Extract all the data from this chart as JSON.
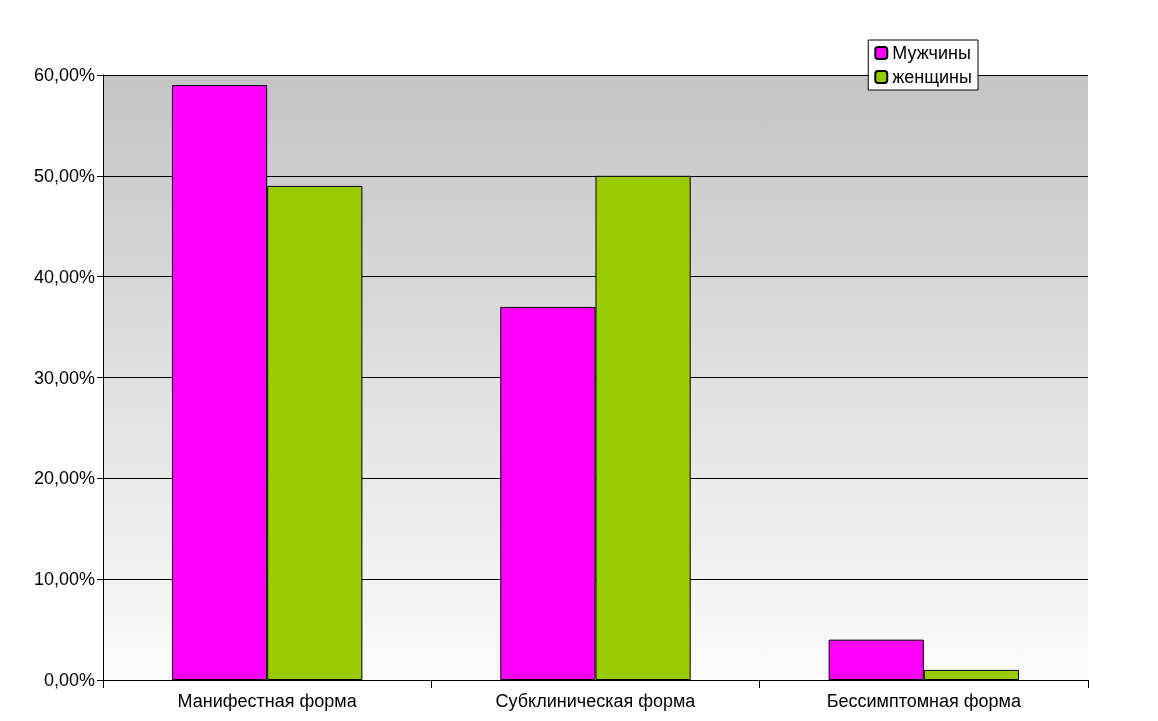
{
  "chart_data": {
    "type": "bar",
    "categories": [
      "Манифестная форма",
      "Субклиническая форма",
      "Бессимптомная форма"
    ],
    "series": [
      {
        "name": "Мужчины",
        "color": "#ff00ff",
        "values": [
          59,
          37,
          4
        ]
      },
      {
        "name": "женщины",
        "color": "#99cc00",
        "values": [
          49,
          50,
          1
        ]
      }
    ],
    "ylim": [
      0,
      60
    ],
    "yticks": [
      {
        "value": 0,
        "label": "0,00%"
      },
      {
        "value": 10,
        "label": "10,00%"
      },
      {
        "value": 20,
        "label": "20,00%"
      },
      {
        "value": 30,
        "label": "30,00%"
      },
      {
        "value": 40,
        "label": "40,00%"
      },
      {
        "value": 50,
        "label": "50,00%"
      },
      {
        "value": 60,
        "label": "60,00%"
      }
    ],
    "grid": "y",
    "legend": "top right"
  }
}
